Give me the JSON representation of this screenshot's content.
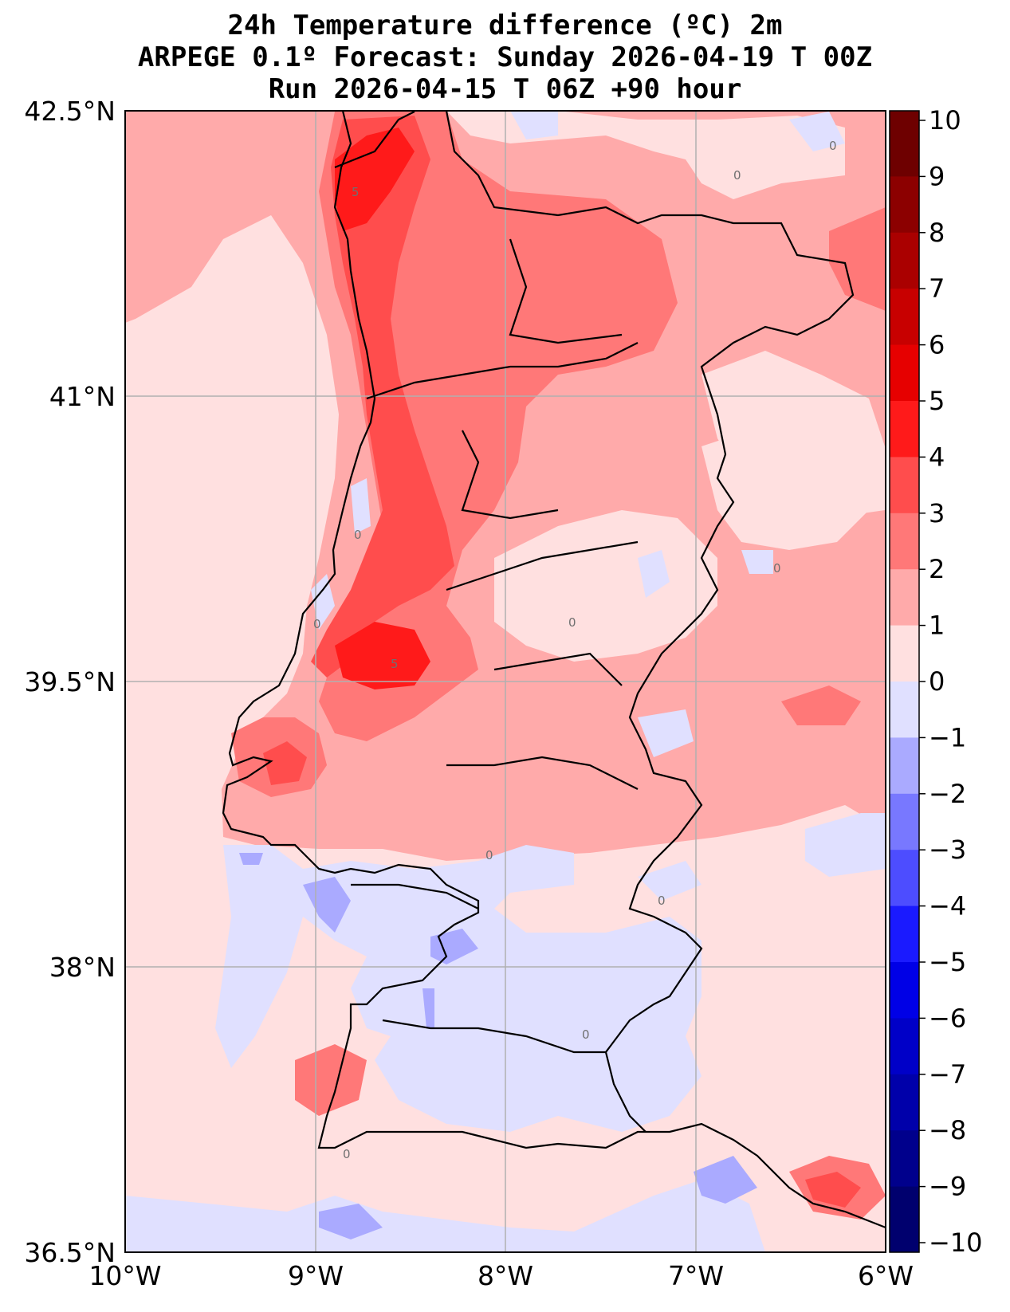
{
  "title_line1": "24h Temperature difference (ºC) 2m",
  "title_line2": "ARPEGE 0.1º Forecast: Sunday 2026-04-19 T 00Z",
  "title_line3": "Run 2026-04-15 T 06Z +90 hour",
  "map": {
    "region": "Portugal / western Iberian Peninsula",
    "lon_range": [
      -10,
      -6
    ],
    "lat_range": [
      36.5,
      42.5
    ],
    "lat_ticks": [
      "42.5°N",
      "41°N",
      "39.5°N",
      "38°N",
      "36.5°N"
    ],
    "lon_ticks": [
      "10°W",
      "9°W",
      "8°W",
      "7°W",
      "6°W"
    ],
    "contour_labels": [
      "5",
      "5",
      "0",
      "0",
      "0",
      "0",
      "0",
      "0",
      "0",
      "0",
      "0",
      "0"
    ]
  },
  "colorbar": {
    "labels": [
      "10",
      "9",
      "8",
      "7",
      "6",
      "5",
      "4",
      "3",
      "2",
      "1",
      "0",
      "−1",
      "−2",
      "−3",
      "−4",
      "−5",
      "−6",
      "−7",
      "−8",
      "−9",
      "−10"
    ],
    "colors": {
      "pos": [
        "#6e0000",
        "#8c0000",
        "#aa0000",
        "#c80000",
        "#e60000",
        "#ff1a1a",
        "#ff4d4d",
        "#ff7878",
        "#ffaaaa",
        "#ffe0e0"
      ],
      "neg": [
        "#e0e0ff",
        "#aaaaff",
        "#7878ff",
        "#4d4dff",
        "#1a1aff",
        "#0000e6",
        "#0000c8",
        "#0000aa",
        "#00008c",
        "#00006e"
      ]
    }
  },
  "colors": {
    "c0": "#ffe0e0",
    "c1": "#ffaaaa",
    "c2": "#ff7878",
    "c3": "#ff4d4d",
    "c4": "#ff1a1a",
    "n0": "#e0e0ff",
    "n1": "#aaaaff",
    "grid": "#b0b0b0",
    "coast": "#000000"
  }
}
